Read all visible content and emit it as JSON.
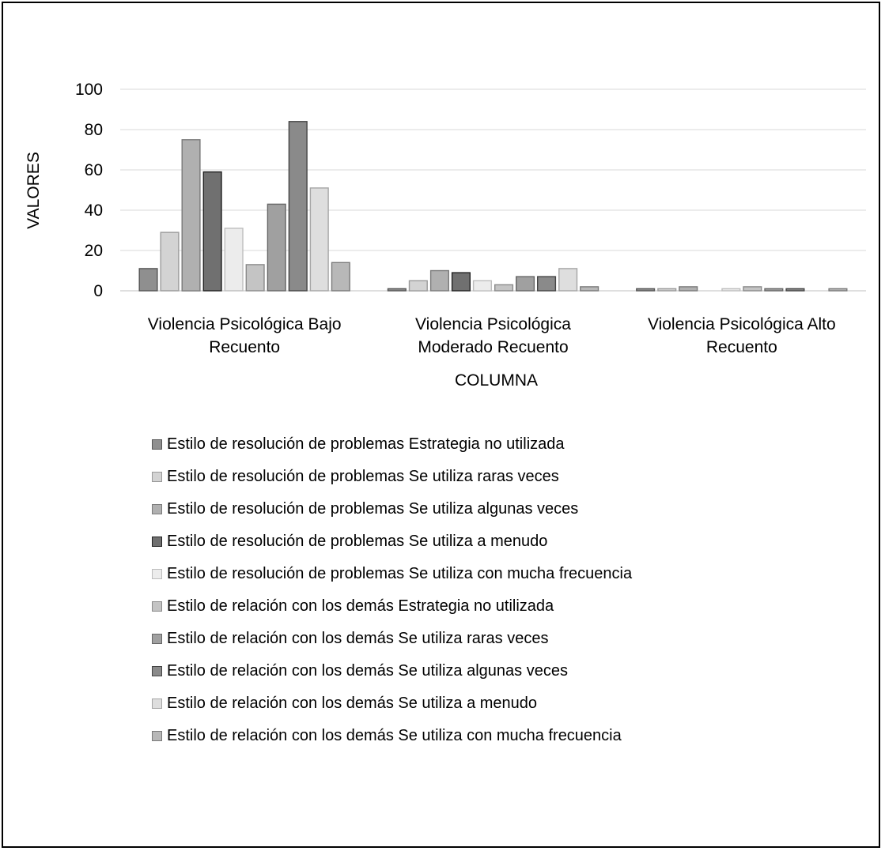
{
  "chart_data": {
    "type": "bar",
    "xlabel": "COLUMNA",
    "ylabel": "VALORES",
    "ylim": [
      0,
      100
    ],
    "yticks": [
      0,
      20,
      40,
      60,
      80,
      100
    ],
    "grid": true,
    "legend_position": "bottom",
    "categories": [
      [
        "Violencia Psicológica Bajo",
        "Recuento"
      ],
      [
        "Violencia Psicológica",
        "Moderado Recuento"
      ],
      [
        "Violencia Psicológica Alto",
        "Recuento"
      ]
    ],
    "series": [
      {
        "name": "Estilo de resolución de problemas Estrategia no utilizada",
        "color": "#8f8f8f",
        "border": "#555555",
        "values": [
          11,
          1,
          1
        ]
      },
      {
        "name": "Estilo de resolución de problemas Se utiliza raras veces",
        "color": "#d3d3d3",
        "border": "#9a9a9a",
        "values": [
          29,
          5,
          1
        ]
      },
      {
        "name": "Estilo de resolución de problemas Se utiliza algunas veces",
        "color": "#b0b0b0",
        "border": "#7a7a7a",
        "values": [
          75,
          10,
          2
        ]
      },
      {
        "name": "Estilo de resolución de problemas Se utiliza a menudo",
        "color": "#707070",
        "border": "#222222",
        "values": [
          59,
          9,
          0
        ]
      },
      {
        "name": "Estilo de resolución de problemas Se utiliza con mucha frecuencia",
        "color": "#ececec",
        "border": "#bdbdbd",
        "values": [
          31,
          5,
          1
        ]
      },
      {
        "name": "Estilo de relación con los demás Estrategia no utilizada",
        "color": "#c4c4c4",
        "border": "#8a8a8a",
        "values": [
          13,
          3,
          2
        ]
      },
      {
        "name": "Estilo de relación con los demás Se utiliza raras veces",
        "color": "#a0a0a0",
        "border": "#666666",
        "values": [
          43,
          7,
          1
        ]
      },
      {
        "name": "Estilo de relación con los demás Se utiliza algunas veces",
        "color": "#8a8a8a",
        "border": "#444444",
        "values": [
          84,
          7,
          1
        ]
      },
      {
        "name": "Estilo de relación con los demás Se utiliza a menudo",
        "color": "#dedede",
        "border": "#a5a5a5",
        "values": [
          51,
          11,
          0
        ]
      },
      {
        "name": "Estilo de relación con los demás Se utiliza con mucha frecuencia",
        "color": "#b8b8b8",
        "border": "#7a7a7a",
        "values": [
          14,
          2,
          1
        ]
      }
    ]
  }
}
